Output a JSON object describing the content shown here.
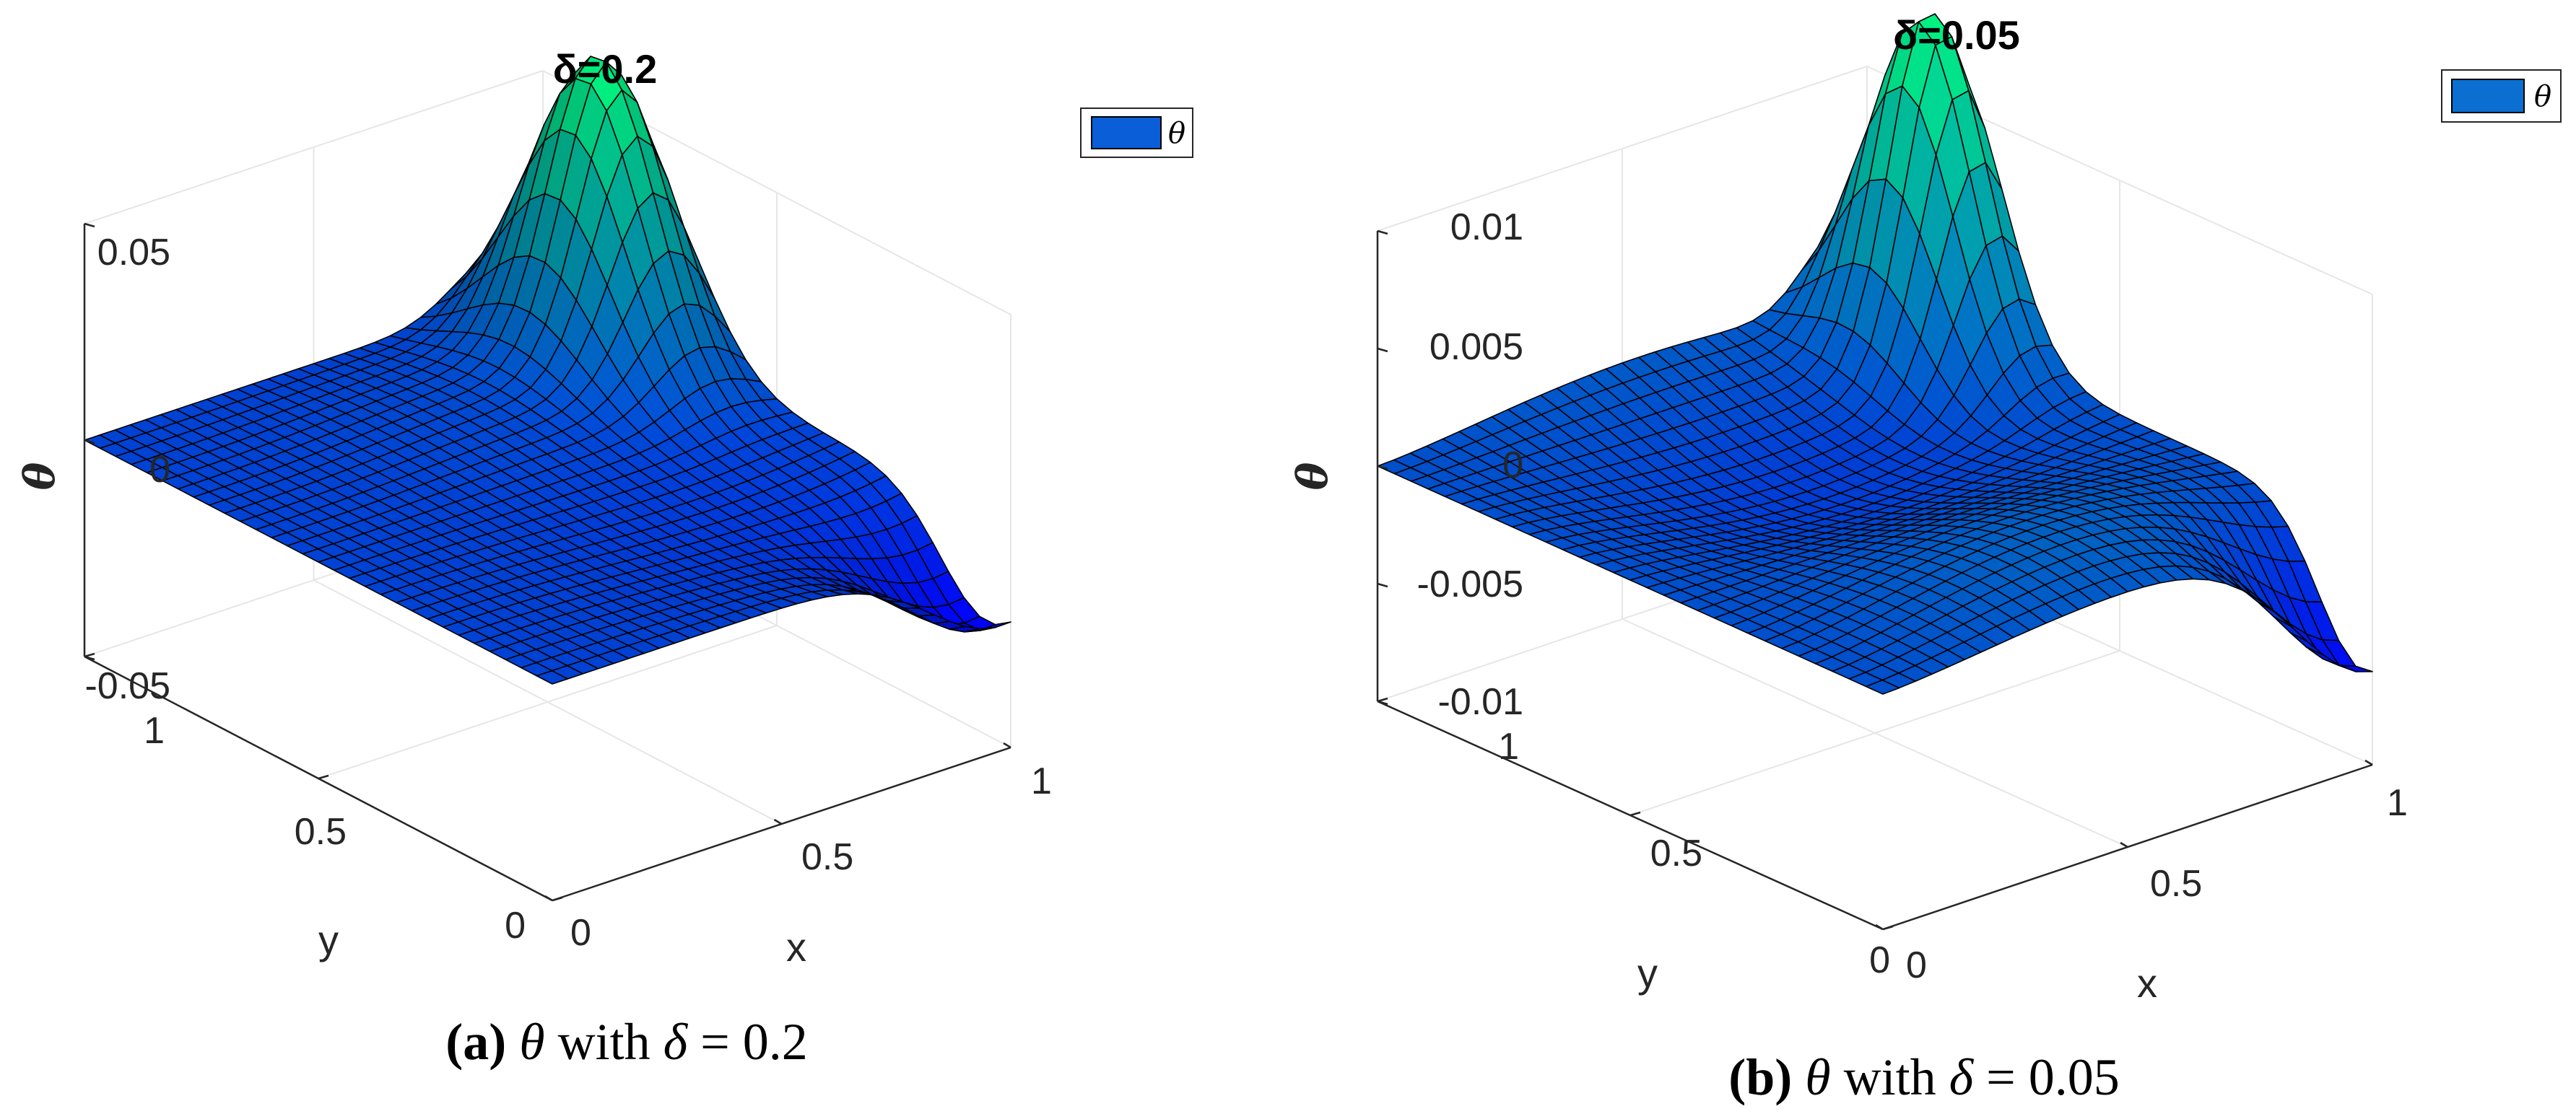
{
  "chart_data": [
    {
      "type": "surface",
      "title": "δ=0.2",
      "xlabel": "x",
      "ylabel": "y",
      "zlabel": "θ",
      "legend": [
        "θ"
      ],
      "legend_position": "top-right",
      "legend_color": "#0a5ed8",
      "xlim": [
        0,
        1
      ],
      "ylim": [
        0,
        1
      ],
      "zlim": [
        -0.05,
        0.05
      ],
      "xticks": [
        "0",
        "0.5",
        "1"
      ],
      "yticks": [
        "0",
        "0.5",
        "1"
      ],
      "zticks": [
        "-0.05",
        "0",
        "0.05"
      ],
      "colormap": "winter",
      "peak": {
        "x": 0.9,
        "y": 0.75,
        "z": 0.068
      },
      "dip": {
        "x": 0.95,
        "y": 0.05,
        "z": -0.02
      },
      "caption": {
        "label": "(a)",
        "symbol": "θ",
        "text": "with",
        "param": "δ",
        "rel": "=",
        "value": "0.2"
      }
    },
    {
      "type": "surface",
      "title": "δ=0.05",
      "xlabel": "x",
      "ylabel": "y",
      "zlabel": "θ",
      "legend": [
        "θ"
      ],
      "legend_position": "top-right",
      "legend_color": "#0a6fd0",
      "xlim": [
        0,
        1
      ],
      "ylim": [
        0,
        1
      ],
      "zlim": [
        -0.01,
        0.01
      ],
      "xticks": [
        "0",
        "0.5",
        "1"
      ],
      "yticks": [
        "0",
        "0.5",
        "1"
      ],
      "zticks": [
        "-0.01",
        "-0.005",
        "0",
        "0.005",
        "0.01"
      ],
      "colormap": "winter",
      "peak": {
        "x": 0.95,
        "y": 0.82,
        "z": 0.0145
      },
      "dip": {
        "x": 0.95,
        "y": 0.05,
        "z": -0.006
      },
      "caption": {
        "label": "(b)",
        "symbol": "θ",
        "text": "with",
        "param": "δ",
        "rel": "=",
        "value": "0.05"
      }
    }
  ]
}
